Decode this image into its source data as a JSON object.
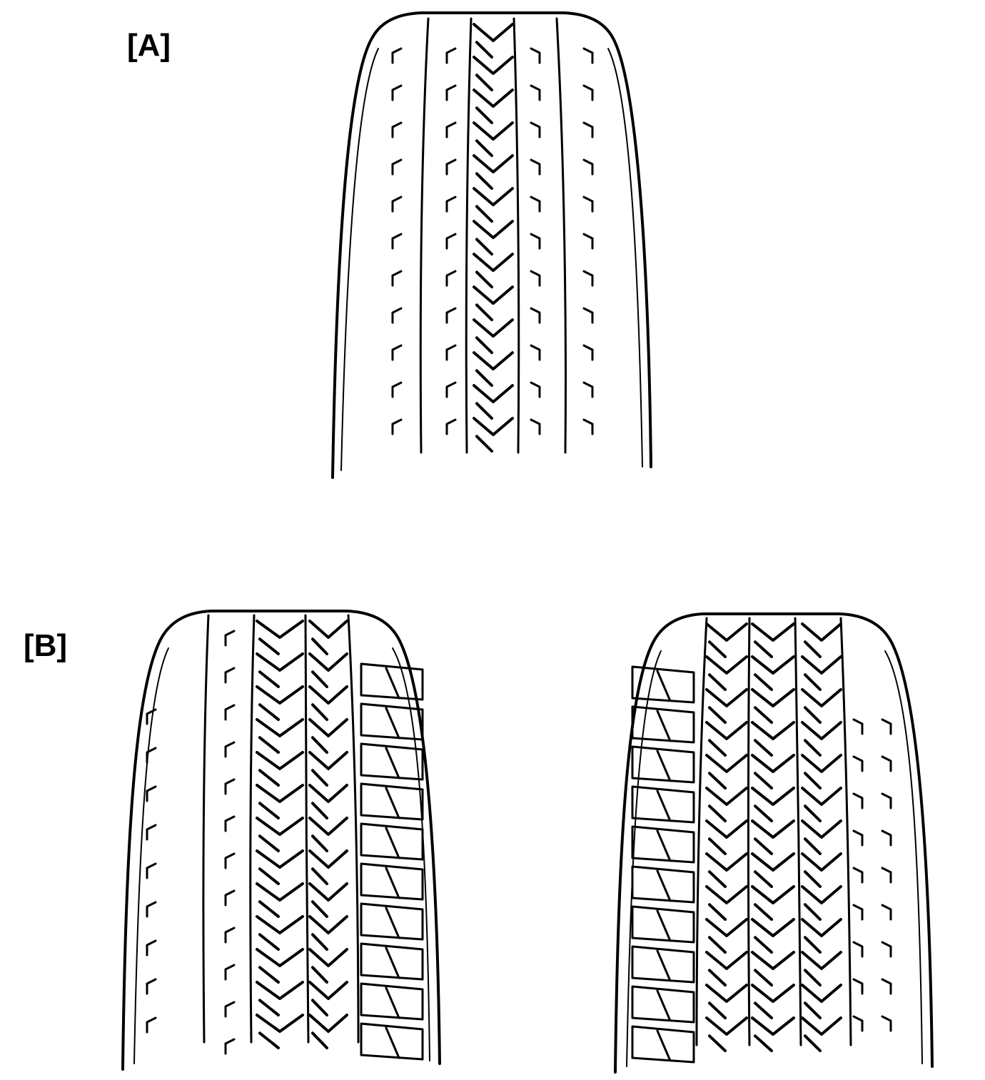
{
  "figure": {
    "label_a": "[A]",
    "label_b": "[B]",
    "colors": {
      "ink": "#000000",
      "paper": "#ffffff"
    },
    "tires": [
      {
        "id": "A",
        "tread": "center-zigzag-rib",
        "shoulder": "plain"
      },
      {
        "id": "B-left",
        "tread": "zigzag-ribs-with-blocks-right",
        "shoulder": "plain-left"
      },
      {
        "id": "B-right",
        "tread": "zigzag-ribs-with-blocks-left",
        "shoulder": "plain-right"
      }
    ]
  }
}
